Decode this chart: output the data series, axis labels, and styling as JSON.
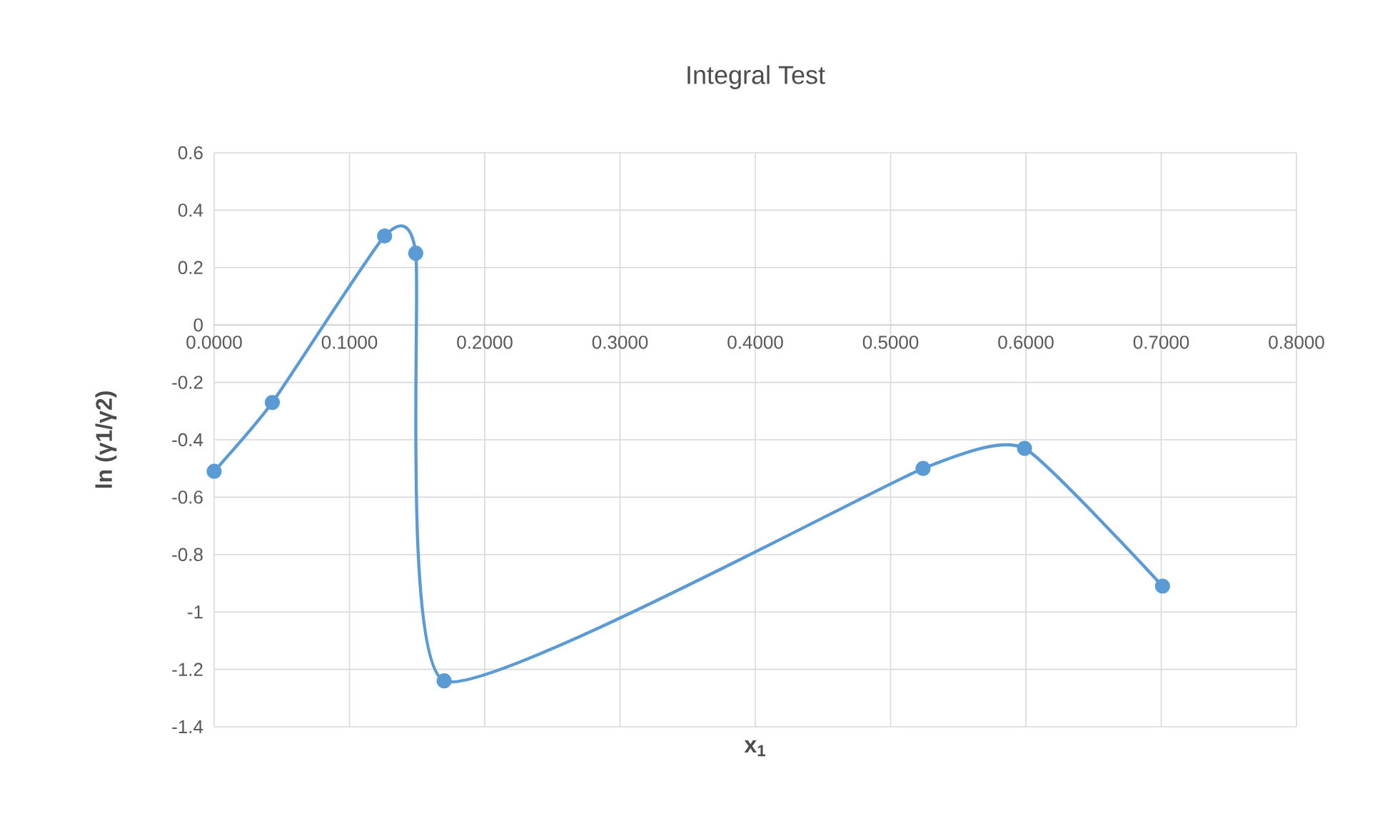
{
  "chart_data": {
    "type": "line",
    "title": "Integral Test",
    "xlabel": "**x$_{1}$**",
    "ylabel": "**ln (γ1/γ2)**",
    "x": [
      0,
      0.043,
      0.126,
      0.149,
      0.17,
      0.524,
      0.599,
      0.701
    ],
    "series": [
      {
        "color": "#5b9bd5",
        "values": [
          -0.51,
          -0.27,
          0.31,
          0.25,
          -1.24,
          -0.5,
          -0.43,
          -0.91
        ]
      }
    ],
    "xlim": [
      0,
      0.8
    ],
    "ylim": [
      -1.4,
      0.6
    ],
    "xticks": [
      {
        "value": 0,
        "label": "0.0000"
      },
      {
        "value": 0.1,
        "label": "0.1000"
      },
      {
        "value": 0.2,
        "label": "0.2000"
      },
      {
        "value": 0.3,
        "label": "0.3000"
      },
      {
        "value": 0.4,
        "label": "0.4000"
      },
      {
        "value": 0.5,
        "label": "0.5000"
      },
      {
        "value": 0.6,
        "label": "0.6000"
      },
      {
        "value": 0.7,
        "label": "0.7000"
      },
      {
        "value": 0.8,
        "label": "0.8000"
      }
    ],
    "yticks": [
      -1.4,
      -1.2,
      -1,
      -0.8,
      -0.6,
      -0.4,
      -0.2,
      0,
      0.2,
      0.4,
      0.6
    ],
    "grid": true,
    "marker": "circle",
    "line_style": "solid"
  }
}
